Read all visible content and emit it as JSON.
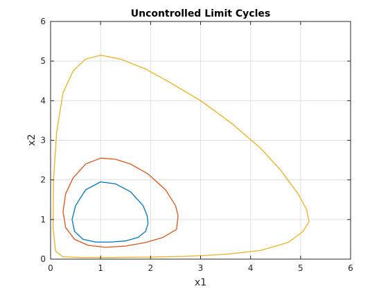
{
  "chart_data": {
    "type": "line",
    "title": "Uncontrolled Limit Cycles",
    "xlabel": "x1",
    "ylabel": "x2",
    "xlim": [
      0,
      6
    ],
    "ylim": [
      0,
      6
    ],
    "xticks": [
      0,
      1,
      2,
      3,
      4,
      5,
      6
    ],
    "yticks": [
      0,
      1,
      2,
      3,
      4,
      5,
      6
    ],
    "grid": true,
    "legend": "none",
    "series": [
      {
        "color": "#0072BD",
        "x": [
          1.0,
          1.3,
          1.6,
          1.85,
          1.93,
          1.95,
          1.9,
          1.75,
          1.5,
          1.2,
          0.9,
          0.65,
          0.48,
          0.43,
          0.5,
          0.7,
          1.0
        ],
        "y": [
          1.95,
          1.9,
          1.7,
          1.35,
          1.1,
          0.9,
          0.7,
          0.55,
          0.46,
          0.43,
          0.43,
          0.5,
          0.7,
          1.0,
          1.35,
          1.75,
          1.95
        ]
      },
      {
        "color": "#D95319",
        "x": [
          1.0,
          1.3,
          1.6,
          1.95,
          2.3,
          2.5,
          2.55,
          2.52,
          2.25,
          1.9,
          1.5,
          1.1,
          0.75,
          0.48,
          0.3,
          0.25,
          0.3,
          0.45,
          0.7,
          1.0
        ],
        "y": [
          2.55,
          2.52,
          2.4,
          2.15,
          1.75,
          1.35,
          1.1,
          0.75,
          0.55,
          0.42,
          0.33,
          0.3,
          0.35,
          0.5,
          0.8,
          1.2,
          1.65,
          2.05,
          2.4,
          2.55
        ]
      },
      {
        "color": "#EDB120",
        "x": [
          1.0,
          1.4,
          1.9,
          2.4,
          3.0,
          3.6,
          4.2,
          4.6,
          4.95,
          5.12,
          5.17,
          5.05,
          4.75,
          4.2,
          3.5,
          2.7,
          1.9,
          1.2,
          0.6,
          0.25,
          0.1,
          0.05,
          0.06,
          0.12,
          0.25,
          0.45,
          0.7,
          1.0
        ],
        "y": [
          5.15,
          5.05,
          4.8,
          4.45,
          4.0,
          3.45,
          2.8,
          2.25,
          1.65,
          1.25,
          0.95,
          0.7,
          0.42,
          0.22,
          0.12,
          0.07,
          0.05,
          0.04,
          0.04,
          0.06,
          0.2,
          0.8,
          2.0,
          3.2,
          4.2,
          4.75,
          5.05,
          5.15
        ]
      }
    ]
  }
}
